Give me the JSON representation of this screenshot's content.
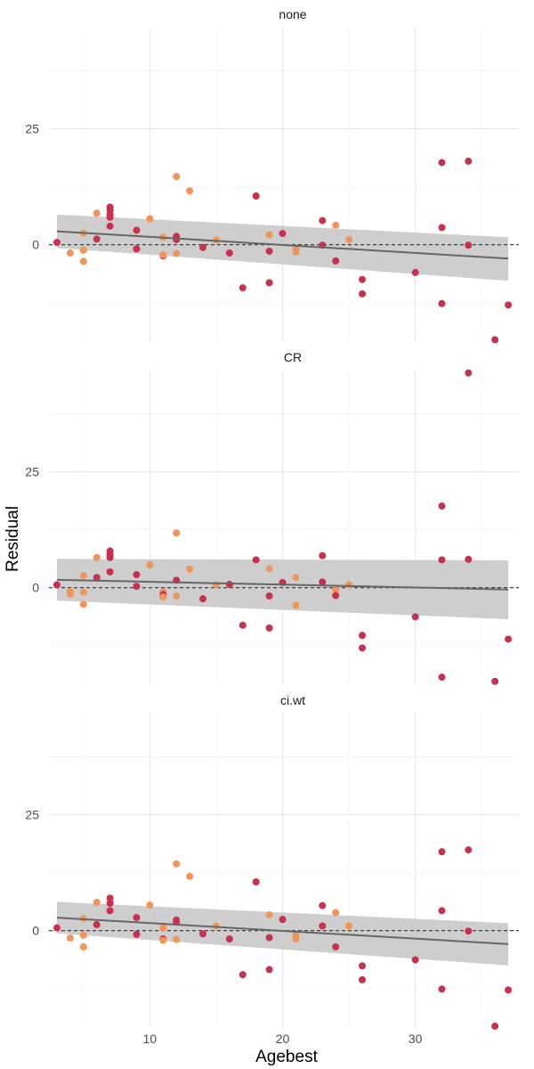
{
  "chart_data": {
    "type": "scatter",
    "xlabel": "Agebest",
    "ylabel": "Residual",
    "xlim": [
      2.4,
      37.8
    ],
    "x_ticks": [
      10,
      20,
      30
    ],
    "y_ticks": [
      25,
      0
    ],
    "grid": true,
    "legend": "none",
    "colors": {
      "red": "#c9304f",
      "orange": "#f0955a",
      "ribbon": "#bdbdbd",
      "fit": "#666666",
      "ref": "#333333"
    },
    "panels": [
      {
        "strip": "none",
        "ylim": [
          -21,
          47
        ],
        "fit": {
          "x": [
            3,
            37
          ],
          "y": [
            2.9,
            -3.0
          ],
          "lower": [
            -0.7,
            -7.8
          ],
          "upper": [
            6.5,
            1.6
          ]
        },
        "points": [
          {
            "x": 3,
            "y": 0.5,
            "c": "red"
          },
          {
            "x": 4,
            "y": -1.8,
            "c": "orange"
          },
          {
            "x": 5,
            "y": 2.5,
            "c": "orange"
          },
          {
            "x": 5,
            "y": -1.2,
            "c": "orange"
          },
          {
            "x": 5,
            "y": -3.6,
            "c": "orange"
          },
          {
            "x": 6,
            "y": 6.8,
            "c": "orange"
          },
          {
            "x": 6,
            "y": 1.2,
            "c": "red"
          },
          {
            "x": 7,
            "y": 8.1,
            "c": "red"
          },
          {
            "x": 7,
            "y": 7.4,
            "c": "red"
          },
          {
            "x": 7,
            "y": 6.5,
            "c": "red"
          },
          {
            "x": 7,
            "y": 5.9,
            "c": "red"
          },
          {
            "x": 7,
            "y": 4.0,
            "c": "red"
          },
          {
            "x": 9,
            "y": 3.1,
            "c": "red"
          },
          {
            "x": 9,
            "y": -0.9,
            "c": "red"
          },
          {
            "x": 10,
            "y": 5.6,
            "c": "orange"
          },
          {
            "x": 11,
            "y": 1.6,
            "c": "orange"
          },
          {
            "x": 11,
            "y": -2.4,
            "c": "red"
          },
          {
            "x": 11,
            "y": -2.2,
            "c": "orange"
          },
          {
            "x": 12,
            "y": 14.7,
            "c": "orange"
          },
          {
            "x": 12,
            "y": 1.8,
            "c": "red"
          },
          {
            "x": 12,
            "y": 1.1,
            "c": "red"
          },
          {
            "x": 12,
            "y": -1.9,
            "c": "orange"
          },
          {
            "x": 13,
            "y": 11.6,
            "c": "orange"
          },
          {
            "x": 14,
            "y": -0.6,
            "c": "red"
          },
          {
            "x": 15,
            "y": 1.0,
            "c": "orange"
          },
          {
            "x": 16,
            "y": -1.8,
            "c": "red"
          },
          {
            "x": 17,
            "y": -9.3,
            "c": "red"
          },
          {
            "x": 18,
            "y": 10.5,
            "c": "red"
          },
          {
            "x": 19,
            "y": 2.1,
            "c": "orange"
          },
          {
            "x": 19,
            "y": -1.4,
            "c": "red"
          },
          {
            "x": 19,
            "y": -8.2,
            "c": "red"
          },
          {
            "x": 20,
            "y": 2.4,
            "c": "red"
          },
          {
            "x": 21,
            "y": -0.9,
            "c": "orange"
          },
          {
            "x": 21,
            "y": -1.6,
            "c": "orange"
          },
          {
            "x": 23,
            "y": 5.2,
            "c": "red"
          },
          {
            "x": 23,
            "y": -0.1,
            "c": "red"
          },
          {
            "x": 24,
            "y": 4.2,
            "c": "orange"
          },
          {
            "x": 24,
            "y": -3.5,
            "c": "red"
          },
          {
            "x": 25,
            "y": 1.1,
            "c": "orange"
          },
          {
            "x": 26,
            "y": -7.5,
            "c": "red"
          },
          {
            "x": 26,
            "y": -10.6,
            "c": "red"
          },
          {
            "x": 30,
            "y": -6.0,
            "c": "red"
          },
          {
            "x": 32,
            "y": 17.7,
            "c": "red"
          },
          {
            "x": 32,
            "y": 3.7,
            "c": "red"
          },
          {
            "x": 32,
            "y": -12.7,
            "c": "red"
          },
          {
            "x": 34,
            "y": 18.0,
            "c": "red"
          },
          {
            "x": 34,
            "y": -0.1,
            "c": "red"
          },
          {
            "x": 36,
            "y": -20.5,
            "c": "red"
          },
          {
            "x": 37,
            "y": -13.0,
            "c": "red"
          }
        ]
      },
      {
        "strip": "CR",
        "ylim": [
          -21,
          47
        ],
        "fit": {
          "x": [
            3,
            37
          ],
          "y": [
            1.7,
            -0.4
          ],
          "lower": [
            -2.8,
            -6.8
          ],
          "upper": [
            6.2,
            5.9
          ]
        },
        "points": [
          {
            "x": 3,
            "y": 0.6,
            "c": "red"
          },
          {
            "x": 4,
            "y": -0.8,
            "c": "orange"
          },
          {
            "x": 4,
            "y": -1.4,
            "c": "orange"
          },
          {
            "x": 5,
            "y": 2.6,
            "c": "orange"
          },
          {
            "x": 5,
            "y": -1.0,
            "c": "orange"
          },
          {
            "x": 5,
            "y": -3.6,
            "c": "orange"
          },
          {
            "x": 6,
            "y": 6.5,
            "c": "orange"
          },
          {
            "x": 6,
            "y": 2.2,
            "c": "red"
          },
          {
            "x": 7,
            "y": 7.9,
            "c": "red"
          },
          {
            "x": 7,
            "y": 7.1,
            "c": "red"
          },
          {
            "x": 7,
            "y": 6.5,
            "c": "red"
          },
          {
            "x": 7,
            "y": 3.4,
            "c": "red"
          },
          {
            "x": 9,
            "y": 2.8,
            "c": "red"
          },
          {
            "x": 9,
            "y": 0.3,
            "c": "red"
          },
          {
            "x": 10,
            "y": 4.9,
            "c": "orange"
          },
          {
            "x": 11,
            "y": -0.9,
            "c": "orange"
          },
          {
            "x": 11,
            "y": -1.5,
            "c": "red"
          },
          {
            "x": 11,
            "y": -2.0,
            "c": "orange"
          },
          {
            "x": 12,
            "y": 11.8,
            "c": "orange"
          },
          {
            "x": 12,
            "y": 1.6,
            "c": "red"
          },
          {
            "x": 12,
            "y": -1.8,
            "c": "orange"
          },
          {
            "x": 13,
            "y": 4.0,
            "c": "orange"
          },
          {
            "x": 14,
            "y": -2.4,
            "c": "red"
          },
          {
            "x": 15,
            "y": 0.6,
            "c": "orange"
          },
          {
            "x": 16,
            "y": 0.7,
            "c": "red"
          },
          {
            "x": 17,
            "y": -8.1,
            "c": "red"
          },
          {
            "x": 18,
            "y": 6.0,
            "c": "red"
          },
          {
            "x": 19,
            "y": 4.1,
            "c": "orange"
          },
          {
            "x": 19,
            "y": -1.8,
            "c": "red"
          },
          {
            "x": 19,
            "y": -8.7,
            "c": "red"
          },
          {
            "x": 20,
            "y": 1.1,
            "c": "red"
          },
          {
            "x": 21,
            "y": 2.2,
            "c": "orange"
          },
          {
            "x": 21,
            "y": -3.8,
            "c": "orange"
          },
          {
            "x": 23,
            "y": 6.9,
            "c": "red"
          },
          {
            "x": 23,
            "y": 1.2,
            "c": "red"
          },
          {
            "x": 24,
            "y": -0.4,
            "c": "orange"
          },
          {
            "x": 24,
            "y": -1.7,
            "c": "red"
          },
          {
            "x": 25,
            "y": 0.6,
            "c": "orange"
          },
          {
            "x": 26,
            "y": -10.3,
            "c": "red"
          },
          {
            "x": 26,
            "y": -13.0,
            "c": "red"
          },
          {
            "x": 30,
            "y": -6.3,
            "c": "red"
          },
          {
            "x": 32,
            "y": 17.6,
            "c": "red"
          },
          {
            "x": 32,
            "y": 6.0,
            "c": "red"
          },
          {
            "x": 32,
            "y": -19.3,
            "c": "red"
          },
          {
            "x": 34,
            "y": 46.3,
            "c": "red"
          },
          {
            "x": 34,
            "y": 6.1,
            "c": "red"
          },
          {
            "x": 36,
            "y": -20.2,
            "c": "red"
          },
          {
            "x": 37,
            "y": -11.1,
            "c": "red"
          }
        ]
      },
      {
        "strip": "ci.wt",
        "ylim": [
          -21,
          47
        ],
        "fit": {
          "x": [
            3,
            37
          ],
          "y": [
            2.8,
            -2.9
          ],
          "lower": [
            -0.6,
            -7.5
          ],
          "upper": [
            6.2,
            1.6
          ]
        },
        "points": [
          {
            "x": 3,
            "y": 0.6,
            "c": "red"
          },
          {
            "x": 4,
            "y": -1.6,
            "c": "orange"
          },
          {
            "x": 5,
            "y": 2.6,
            "c": "orange"
          },
          {
            "x": 5,
            "y": -1.0,
            "c": "orange"
          },
          {
            "x": 5,
            "y": -3.5,
            "c": "orange"
          },
          {
            "x": 6,
            "y": 6.1,
            "c": "orange"
          },
          {
            "x": 6,
            "y": 1.3,
            "c": "red"
          },
          {
            "x": 7,
            "y": 7.0,
            "c": "red"
          },
          {
            "x": 7,
            "y": 5.9,
            "c": "red"
          },
          {
            "x": 7,
            "y": 4.3,
            "c": "red"
          },
          {
            "x": 9,
            "y": 2.8,
            "c": "red"
          },
          {
            "x": 9,
            "y": -0.8,
            "c": "red"
          },
          {
            "x": 10,
            "y": 5.5,
            "c": "orange"
          },
          {
            "x": 11,
            "y": 0.6,
            "c": "orange"
          },
          {
            "x": 11,
            "y": -1.8,
            "c": "red"
          },
          {
            "x": 11,
            "y": -2.1,
            "c": "orange"
          },
          {
            "x": 12,
            "y": 14.4,
            "c": "orange"
          },
          {
            "x": 12,
            "y": 2.3,
            "c": "red"
          },
          {
            "x": 12,
            "y": 1.8,
            "c": "red"
          },
          {
            "x": 12,
            "y": -1.9,
            "c": "orange"
          },
          {
            "x": 13,
            "y": 11.7,
            "c": "orange"
          },
          {
            "x": 14,
            "y": -0.7,
            "c": "red"
          },
          {
            "x": 15,
            "y": 1.0,
            "c": "orange"
          },
          {
            "x": 16,
            "y": -1.8,
            "c": "red"
          },
          {
            "x": 17,
            "y": -9.5,
            "c": "red"
          },
          {
            "x": 18,
            "y": 10.5,
            "c": "red"
          },
          {
            "x": 19,
            "y": 3.4,
            "c": "orange"
          },
          {
            "x": 19,
            "y": -1.5,
            "c": "red"
          },
          {
            "x": 19,
            "y": -8.4,
            "c": "red"
          },
          {
            "x": 20,
            "y": 2.4,
            "c": "red"
          },
          {
            "x": 21,
            "y": -0.9,
            "c": "orange"
          },
          {
            "x": 21,
            "y": -1.8,
            "c": "orange"
          },
          {
            "x": 23,
            "y": 5.4,
            "c": "red"
          },
          {
            "x": 23,
            "y": 1.0,
            "c": "red"
          },
          {
            "x": 24,
            "y": 3.9,
            "c": "orange"
          },
          {
            "x": 24,
            "y": -3.5,
            "c": "red"
          },
          {
            "x": 25,
            "y": 1.0,
            "c": "orange"
          },
          {
            "x": 26,
            "y": -7.6,
            "c": "red"
          },
          {
            "x": 26,
            "y": -10.6,
            "c": "red"
          },
          {
            "x": 30,
            "y": -6.3,
            "c": "red"
          },
          {
            "x": 32,
            "y": 17.0,
            "c": "red"
          },
          {
            "x": 32,
            "y": 4.3,
            "c": "red"
          },
          {
            "x": 32,
            "y": -12.6,
            "c": "red"
          },
          {
            "x": 34,
            "y": 17.4,
            "c": "red"
          },
          {
            "x": 34,
            "y": -0.1,
            "c": "red"
          },
          {
            "x": 36,
            "y": -20.6,
            "c": "red"
          },
          {
            "x": 37,
            "y": -12.8,
            "c": "red"
          }
        ]
      }
    ]
  }
}
